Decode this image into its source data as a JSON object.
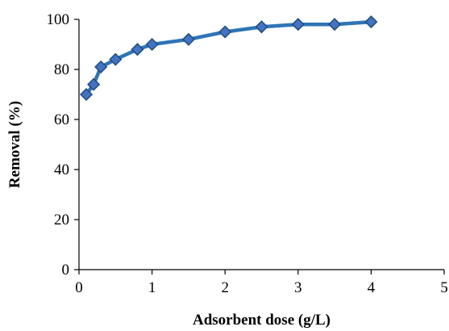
{
  "chart_data": {
    "type": "line",
    "title": "",
    "xlabel": "Adsorbent dose (g/L)",
    "ylabel": "Removal (%)",
    "xlim": [
      0,
      5
    ],
    "ylim": [
      0,
      100
    ],
    "xticks": [
      0,
      1,
      2,
      3,
      4,
      5
    ],
    "yticks": [
      0,
      20,
      40,
      60,
      80,
      100
    ],
    "grid": false,
    "legend": "none",
    "marker": "diamond",
    "series": [
      {
        "color": "#2E75B6",
        "marker_color": "#4472C4",
        "marker_edge": "#1F4E79",
        "points": [
          {
            "x": 0.1,
            "y": 70
          },
          {
            "x": 0.2,
            "y": 74
          },
          {
            "x": 0.3,
            "y": 81
          },
          {
            "x": 0.5,
            "y": 84
          },
          {
            "x": 0.8,
            "y": 88
          },
          {
            "x": 1.0,
            "y": 90
          },
          {
            "x": 1.5,
            "y": 92
          },
          {
            "x": 2.0,
            "y": 95
          },
          {
            "x": 2.5,
            "y": 97
          },
          {
            "x": 3.0,
            "y": 98
          },
          {
            "x": 3.5,
            "y": 98
          },
          {
            "x": 4.0,
            "y": 99
          }
        ]
      }
    ]
  }
}
